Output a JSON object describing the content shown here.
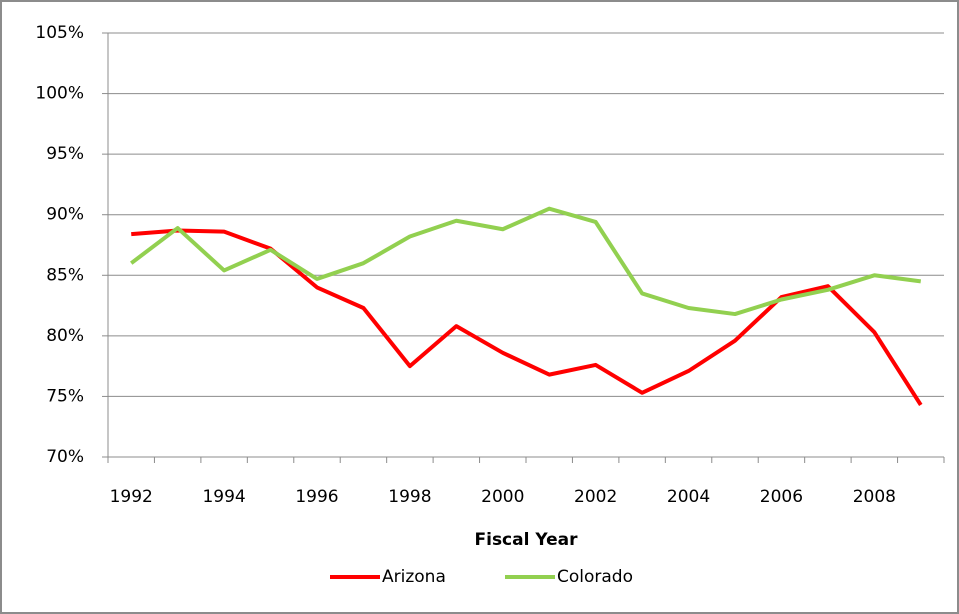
{
  "chart_data": {
    "type": "line",
    "x_label": "Fiscal Year",
    "categories": [
      "1992",
      null,
      "1994",
      null,
      "1996",
      null,
      "1998",
      null,
      "2000",
      null,
      "2002",
      null,
      "2004",
      null,
      "2006",
      null,
      "2008",
      null
    ],
    "series": [
      {
        "name": "Arizona",
        "color": "#ff0000",
        "values": [
          88.4,
          88.7,
          88.6,
          87.2,
          84.0,
          82.3,
          77.5,
          80.8,
          78.6,
          76.8,
          77.6,
          75.3,
          77.1,
          79.6,
          83.2,
          84.1,
          80.3,
          74.3
        ]
      },
      {
        "name": "Colorado",
        "color": "#92d050",
        "values": [
          86.0,
          88.9,
          85.4,
          87.1,
          84.7,
          86.0,
          88.2,
          89.5,
          88.8,
          90.5,
          89.4,
          83.5,
          82.3,
          81.8,
          83.0,
          83.8,
          85.0,
          84.5
        ]
      }
    ],
    "ylim": [
      70,
      105
    ],
    "yticks": [
      {
        "value": 70,
        "label": "70%"
      },
      {
        "value": 75,
        "label": "75%"
      },
      {
        "value": 80,
        "label": "80%"
      },
      {
        "value": 85,
        "label": "85%"
      },
      {
        "value": 90,
        "label": "90%"
      },
      {
        "value": 95,
        "label": "95%"
      },
      {
        "value": 100,
        "label": "100%"
      },
      {
        "value": 105,
        "label": "105%"
      }
    ],
    "grid": true,
    "legend": "bottom"
  }
}
